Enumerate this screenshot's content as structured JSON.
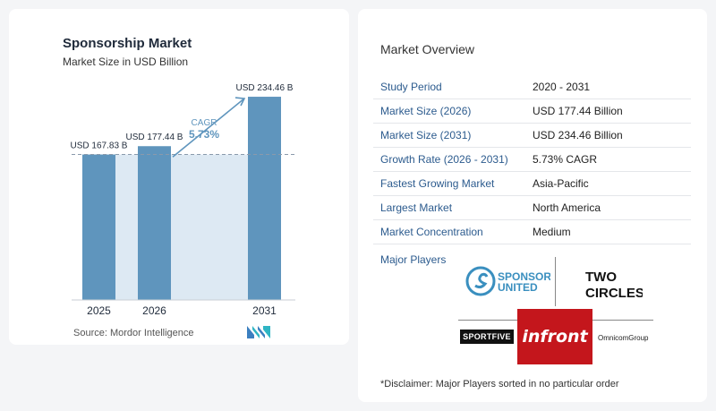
{
  "chart_data": {
    "type": "bar",
    "title": "Sponsorship Market",
    "subtitle": "Market Size in USD Billion",
    "categories": [
      "2025",
      "2026",
      "2031"
    ],
    "values": [
      167.83,
      177.44,
      234.46
    ],
    "value_labels": [
      "USD 167.83 B",
      "USD 177.44 B",
      "USD 234.46 B"
    ],
    "ylim": [
      0,
      250
    ],
    "cagr_label": "CAGR",
    "cagr_value": "5.73%",
    "bar_color": "#5f95bd",
    "shade_color": "#dde9f3",
    "source": "Source:  Mordor Intelligence"
  },
  "overview": {
    "title": "Market Overview",
    "rows": [
      {
        "key": "Study Period",
        "value": "2020 - 2031"
      },
      {
        "key": "Market Size (2026)",
        "value": "USD 177.44 Billion"
      },
      {
        "key": "Market Size (2031)",
        "value": "USD 234.46 Billion"
      },
      {
        "key": "Growth Rate (2026 - 2031)",
        "value": "5.73% CAGR"
      },
      {
        "key": "Fastest Growing Market",
        "value": "Asia-Pacific"
      },
      {
        "key": "Largest Market",
        "value": "North America"
      },
      {
        "key": "Market Concentration",
        "value": "Medium"
      }
    ],
    "major_players_label": "Major Players",
    "players": [
      "SPONSOR UNITED",
      "TWO CIRCLES",
      "SPORTFIVE",
      "infront",
      "OmnicomGroup"
    ],
    "disclaimer": "*Disclaimer: Major Players sorted in no particular order"
  }
}
